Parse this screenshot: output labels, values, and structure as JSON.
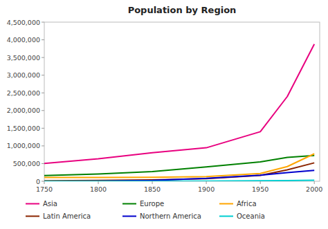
{
  "chart_data": {
    "type": "line",
    "title": "Population by Region",
    "x": [
      1750,
      1800,
      1850,
      1900,
      1950,
      1975,
      2000
    ],
    "series": [
      {
        "name": "Asia",
        "color": "#E8007F",
        "values": [
          502000,
          635000,
          809000,
          947000,
          1402000,
          2397000,
          3879000
        ]
      },
      {
        "name": "Europe",
        "color": "#008000",
        "values": [
          163000,
          203000,
          276000,
          408000,
          547000,
          676000,
          729000
        ]
      },
      {
        "name": "Africa",
        "color": "#FFA500",
        "values": [
          106000,
          107000,
          111000,
          133000,
          221000,
          416000,
          778000
        ]
      },
      {
        "name": "Latin America",
        "color": "#8B2500",
        "values": [
          16000,
          24000,
          38000,
          74000,
          167000,
          322000,
          521000
        ]
      },
      {
        "name": "Northern America",
        "color": "#0000CD",
        "values": [
          2000,
          7000,
          26000,
          82000,
          172000,
          243000,
          310000
        ]
      },
      {
        "name": "Oceania",
        "color": "#00CED1",
        "values": [
          2000,
          2000,
          2000,
          6000,
          13000,
          21000,
          31000
        ]
      }
    ],
    "xlim": [
      1750,
      2005
    ],
    "ylim": [
      0,
      4500000
    ],
    "xticks": [
      1750,
      1800,
      1850,
      1900,
      1950,
      2000
    ],
    "yticks": [
      0,
      {
        "value": 500000,
        "label": "500,000"
      },
      {
        "value": 1000000,
        "label": "1,000,000"
      },
      {
        "value": 1500000,
        "label": "1,500,000"
      },
      {
        "value": 2000000,
        "label": "2,000,000"
      },
      {
        "value": 2500000,
        "label": "2,500,000"
      },
      {
        "value": 3000000,
        "label": "3,000,000"
      },
      {
        "value": 3500000,
        "label": "3,500,000"
      },
      {
        "value": 4000000,
        "label": "4,000,000"
      },
      {
        "value": 4500000,
        "label": "4,500,000"
      }
    ],
    "grid": false,
    "legend": "bottom"
  }
}
